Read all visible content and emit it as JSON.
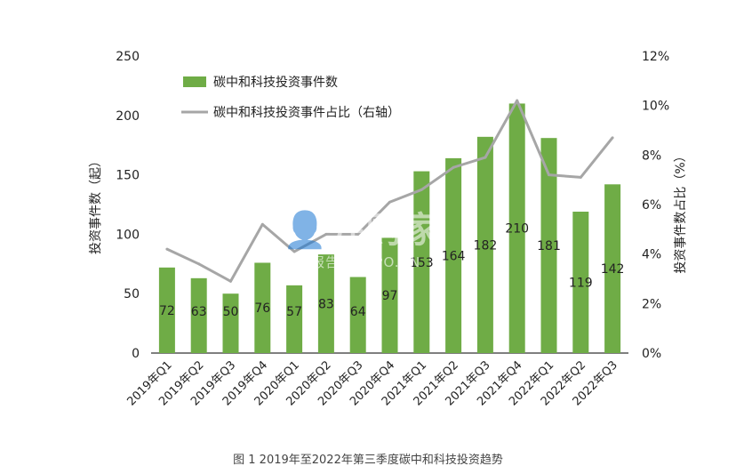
{
  "caption": "图 1 2019年至2022年第三季度碳中和科技投资趋势",
  "watermark": {
    "main": "👤并购家",
    "sub": "行业报告 IPOIPO.CN"
  },
  "colors": {
    "bar": "#6fac46",
    "line": "#a6a6a6",
    "axis_text": "#222222",
    "axis_line": "#333333"
  },
  "chart_data": {
    "type": "bar",
    "title": "",
    "categories": [
      "2019年Q1",
      "2019年Q2",
      "2019年Q3",
      "2019年Q4",
      "2020年Q1",
      "2020年Q2",
      "2020年Q3",
      "2020年Q4",
      "2021年Q1",
      "2021年Q2",
      "2021年Q3",
      "2021年Q4",
      "2022年Q1",
      "2022年Q2",
      "2022年Q3"
    ],
    "series": [
      {
        "name": "碳中和科技投资事件数",
        "type": "bar",
        "axis": "left",
        "values": [
          72,
          63,
          50,
          76,
          57,
          83,
          64,
          97,
          153,
          164,
          182,
          210,
          181,
          119,
          142
        ]
      },
      {
        "name": "碳中和科技投资事件占比（右轴）",
        "type": "line",
        "axis": "right",
        "values": [
          4.2,
          3.6,
          2.9,
          5.2,
          4.1,
          4.8,
          4.8,
          6.1,
          6.6,
          7.5,
          7.9,
          10.2,
          7.2,
          7.1,
          8.7
        ]
      }
    ],
    "ylabel": "投资事件数（起）",
    "ylim": [
      0,
      250
    ],
    "yticks": [
      "0",
      "50",
      "100",
      "150",
      "200",
      "250"
    ],
    "y2label": "投资事件数占比（%）",
    "y2lim": [
      0,
      12
    ],
    "y2ticks": [
      "0%",
      "2%",
      "4%",
      "6%",
      "8%",
      "10%",
      "12%"
    ],
    "legend_position": "top-left",
    "grid": false
  }
}
